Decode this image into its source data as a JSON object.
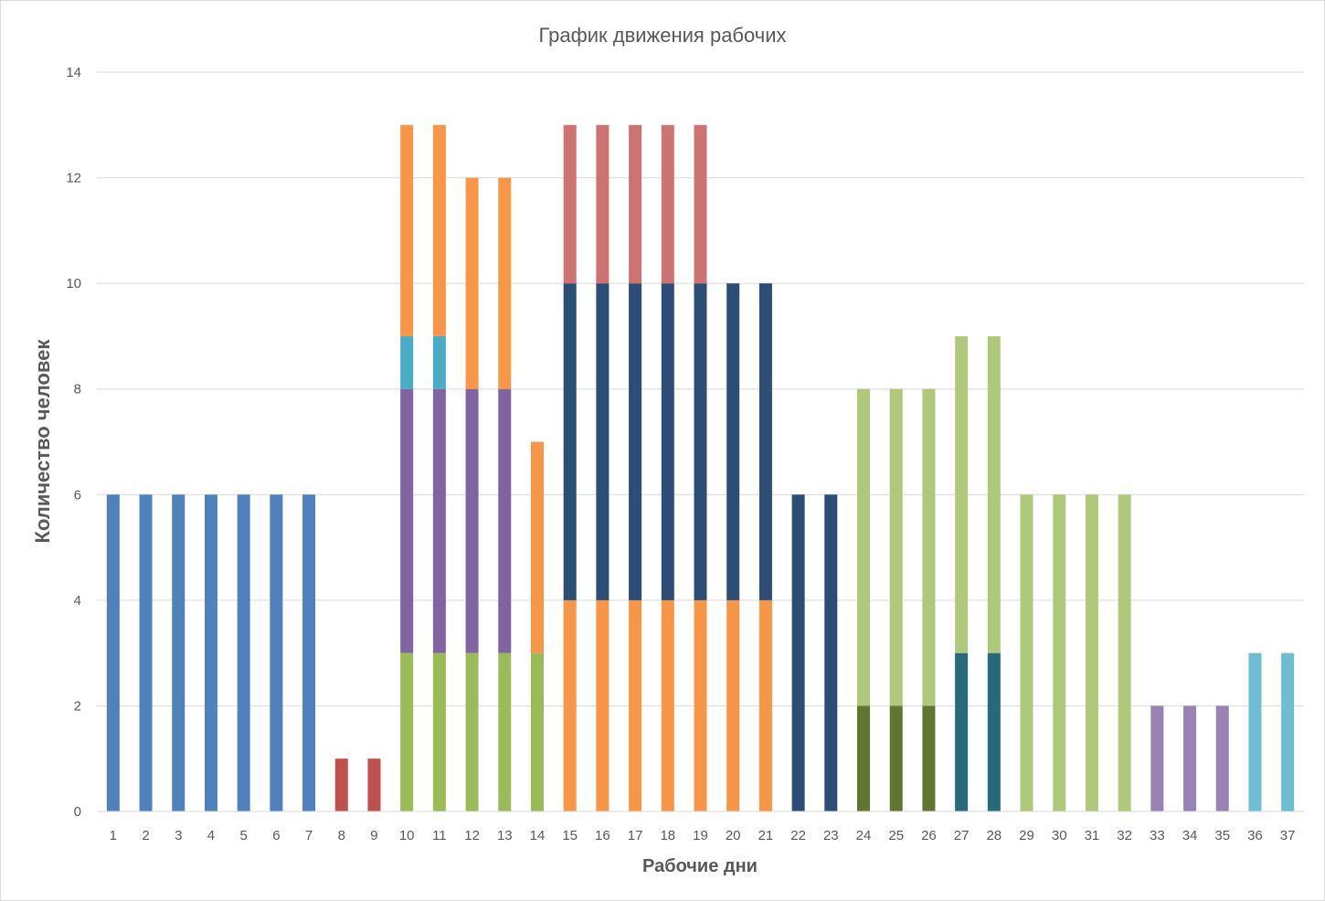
{
  "chart_data": {
    "type": "bar",
    "stacked": true,
    "title": "График движения рабочих",
    "xlabel": "Рабочие дни",
    "ylabel": "Количество человек",
    "ylim": [
      0,
      14
    ],
    "yticks": [
      0,
      2,
      4,
      6,
      8,
      10,
      12,
      14
    ],
    "grid": true,
    "legend": "none",
    "categories": [
      "1",
      "2",
      "3",
      "4",
      "5",
      "6",
      "7",
      "8",
      "9",
      "10",
      "11",
      "12",
      "13",
      "14",
      "15",
      "16",
      "17",
      "18",
      "19",
      "20",
      "21",
      "22",
      "23",
      "24",
      "25",
      "26",
      "27",
      "28",
      "29",
      "30",
      "31",
      "32",
      "33",
      "34",
      "35",
      "36",
      "37"
    ],
    "stacks": [
      [
        {
          "value": 6,
          "color": "#4f81bd"
        }
      ],
      [
        {
          "value": 6,
          "color": "#4f81bd"
        }
      ],
      [
        {
          "value": 6,
          "color": "#4f81bd"
        }
      ],
      [
        {
          "value": 6,
          "color": "#4f81bd"
        }
      ],
      [
        {
          "value": 6,
          "color": "#4f81bd"
        }
      ],
      [
        {
          "value": 6,
          "color": "#4f81bd"
        }
      ],
      [
        {
          "value": 6,
          "color": "#4f81bd"
        }
      ],
      [
        {
          "value": 1,
          "color": "#c0504d"
        }
      ],
      [
        {
          "value": 1,
          "color": "#c0504d"
        }
      ],
      [
        {
          "value": 3,
          "color": "#9bbb59"
        },
        {
          "value": 5,
          "color": "#8064a2"
        },
        {
          "value": 1,
          "color": "#4bacc6"
        },
        {
          "value": 4,
          "color": "#f79646"
        }
      ],
      [
        {
          "value": 3,
          "color": "#9bbb59"
        },
        {
          "value": 5,
          "color": "#8064a2"
        },
        {
          "value": 1,
          "color": "#4bacc6"
        },
        {
          "value": 4,
          "color": "#f79646"
        }
      ],
      [
        {
          "value": 3,
          "color": "#9bbb59"
        },
        {
          "value": 5,
          "color": "#8064a2"
        },
        {
          "value": 4,
          "color": "#f79646"
        }
      ],
      [
        {
          "value": 3,
          "color": "#9bbb59"
        },
        {
          "value": 5,
          "color": "#8064a2"
        },
        {
          "value": 4,
          "color": "#f79646"
        }
      ],
      [
        {
          "value": 3,
          "color": "#9bbb59"
        },
        {
          "value": 4,
          "color": "#f79646"
        }
      ],
      [
        {
          "value": 4,
          "color": "#f79646"
        },
        {
          "value": 6,
          "color": "#2c4d75"
        },
        {
          "value": 3,
          "color": "#cd7371"
        }
      ],
      [
        {
          "value": 4,
          "color": "#f79646"
        },
        {
          "value": 6,
          "color": "#2c4d75"
        },
        {
          "value": 3,
          "color": "#cd7371"
        }
      ],
      [
        {
          "value": 4,
          "color": "#f79646"
        },
        {
          "value": 6,
          "color": "#2c4d75"
        },
        {
          "value": 3,
          "color": "#cd7371"
        }
      ],
      [
        {
          "value": 4,
          "color": "#f79646"
        },
        {
          "value": 6,
          "color": "#2c4d75"
        },
        {
          "value": 3,
          "color": "#cd7371"
        }
      ],
      [
        {
          "value": 4,
          "color": "#f79646"
        },
        {
          "value": 6,
          "color": "#2c4d75"
        },
        {
          "value": 3,
          "color": "#cd7371"
        }
      ],
      [
        {
          "value": 4,
          "color": "#f79646"
        },
        {
          "value": 6,
          "color": "#2c4d75"
        }
      ],
      [
        {
          "value": 4,
          "color": "#f79646"
        },
        {
          "value": 6,
          "color": "#2c4d75"
        }
      ],
      [
        {
          "value": 6,
          "color": "#2c4d75"
        }
      ],
      [
        {
          "value": 6,
          "color": "#2c4d75"
        }
      ],
      [
        {
          "value": 2,
          "color": "#5f7530"
        },
        {
          "value": 6,
          "color": "#afc97a"
        }
      ],
      [
        {
          "value": 2,
          "color": "#5f7530"
        },
        {
          "value": 6,
          "color": "#afc97a"
        }
      ],
      [
        {
          "value": 2,
          "color": "#5f7530"
        },
        {
          "value": 6,
          "color": "#afc97a"
        }
      ],
      [
        {
          "value": 3,
          "color": "#276a7c"
        },
        {
          "value": 6,
          "color": "#afc97a"
        }
      ],
      [
        {
          "value": 3,
          "color": "#276a7c"
        },
        {
          "value": 6,
          "color": "#afc97a"
        }
      ],
      [
        {
          "value": 6,
          "color": "#afc97a"
        }
      ],
      [
        {
          "value": 6,
          "color": "#afc97a"
        }
      ],
      [
        {
          "value": 6,
          "color": "#afc97a"
        }
      ],
      [
        {
          "value": 6,
          "color": "#afc97a"
        }
      ],
      [
        {
          "value": 2,
          "color": "#9983b5"
        }
      ],
      [
        {
          "value": 2,
          "color": "#9983b5"
        }
      ],
      [
        {
          "value": 2,
          "color": "#9983b5"
        }
      ],
      [
        {
          "value": 3,
          "color": "#6fbdd1"
        }
      ],
      [
        {
          "value": 3,
          "color": "#6fbdd1"
        }
      ]
    ]
  }
}
